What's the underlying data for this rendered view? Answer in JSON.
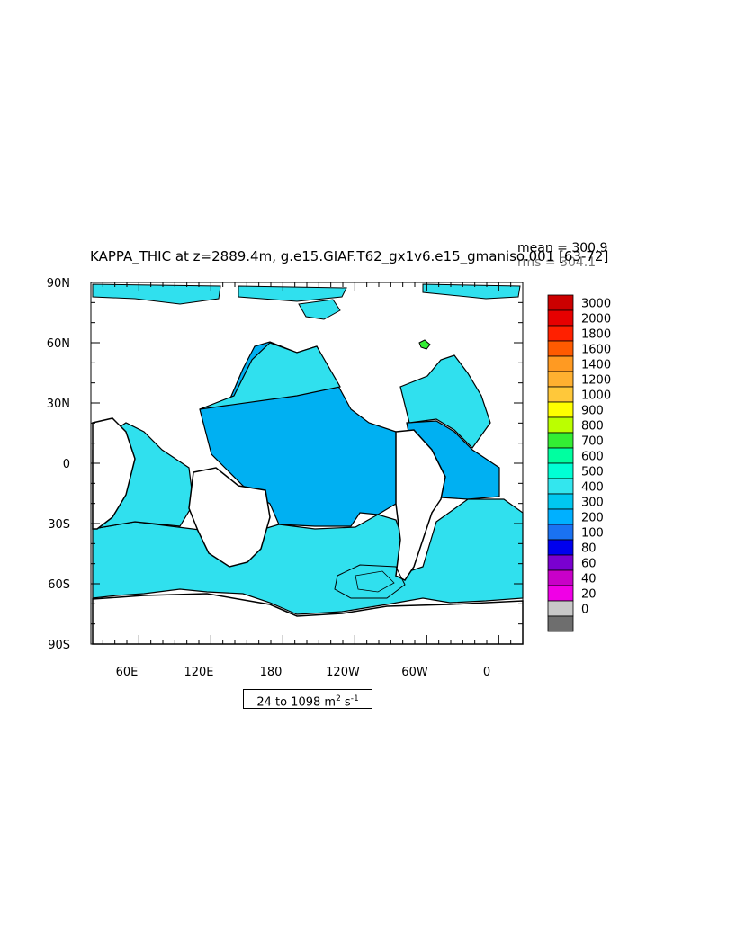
{
  "chart_data": {
    "type": "heatmap",
    "title": "KAPPA_THIC at z=2889.4m, g.e15.GIAF.T62_gx1v6.e15_gmaniso.001 [63-72]",
    "stats": {
      "mean": "mean = 300.9",
      "rms": "rms = 304.1"
    },
    "range_label": {
      "prefix": "24 to 1098 m",
      "exp1": "2",
      "mid": " s",
      "exp2": "-1"
    },
    "x_ticks": [
      "60E",
      "120E",
      "180",
      "120W",
      "60W",
      "0"
    ],
    "y_ticks": [
      "90N",
      "60N",
      "30N",
      "0",
      "30S",
      "60S",
      "90S"
    ],
    "colorbar": {
      "labels": [
        "3000",
        "2000",
        "1800",
        "1600",
        "1400",
        "1200",
        "1000",
        "900",
        "800",
        "700",
        "600",
        "500",
        "400",
        "300",
        "200",
        "100",
        "80",
        "60",
        "40",
        "20",
        "0"
      ],
      "colors": [
        "#cc0000",
        "#e60000",
        "#ff2000",
        "#ff5a00",
        "#ff9a22",
        "#ffb030",
        "#ffc83a",
        "#ffff00",
        "#bbff00",
        "#33ee33",
        "#00ffa0",
        "#00ffd5",
        "#33e6ee",
        "#00c8f0",
        "#00b0ff",
        "#1a72f2",
        "#0000ee",
        "#7a00d0",
        "#c800c8",
        "#f000e6",
        "#c8c8c8",
        "#6e6e6e"
      ]
    },
    "colors": {
      "ocean_high": "#00b0f2",
      "ocean_low": "#30e0ee",
      "land": "#ffffff"
    }
  }
}
